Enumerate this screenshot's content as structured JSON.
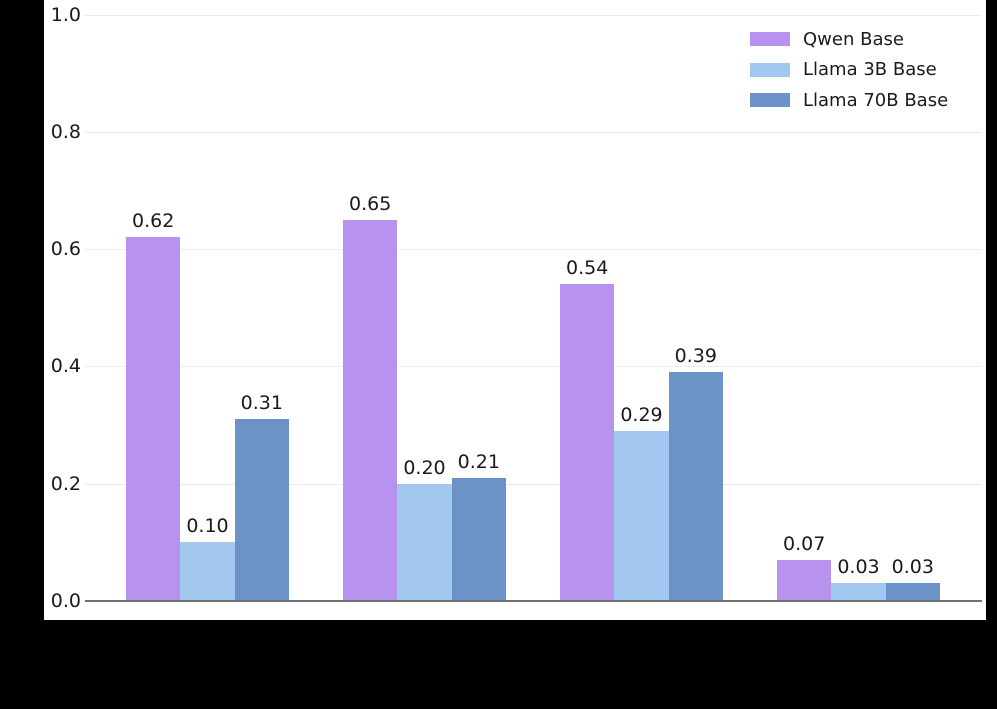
{
  "chart_data": {
    "type": "bar",
    "title": "",
    "categories": [
      "",
      "",
      "",
      ""
    ],
    "series": [
      {
        "name": "Qwen Base",
        "color": "#b792ee",
        "values": [
          0.62,
          0.65,
          0.54,
          0.07
        ]
      },
      {
        "name": "Llama 3B Base",
        "color": "#a3c8f0",
        "values": [
          0.1,
          0.2,
          0.29,
          0.03
        ]
      },
      {
        "name": "Llama 70B Base",
        "color": "#6b93c7",
        "values": [
          0.31,
          0.21,
          0.39,
          0.03
        ]
      }
    ],
    "value_labels": [
      "0.62",
      "0.65",
      "0.54",
      "0.07",
      "0.10",
      "0.20",
      "0.29",
      "0.03",
      "0.31",
      "0.21",
      "0.39",
      "0.03"
    ],
    "ylim": [
      0.0,
      1.0
    ],
    "yticks": [
      "0.0",
      "0.2",
      "0.4",
      "0.6",
      "0.8",
      "1.0"
    ],
    "grid": true,
    "legend_position": "upper right"
  },
  "colors": {
    "canvas_background": "#000000",
    "figure_background": "#ffffff",
    "gridline": "#ececec",
    "axis_line": "#707070",
    "text": "#1a1a1a"
  }
}
